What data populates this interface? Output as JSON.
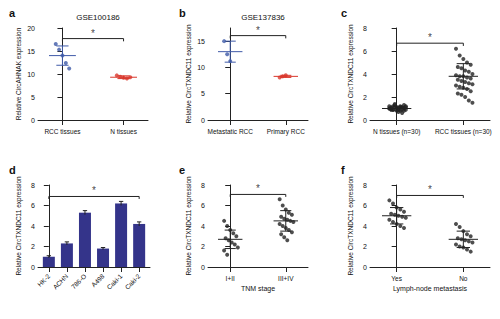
{
  "chart_data": [
    {
      "panel": "a",
      "type": "scatter",
      "title": "GSE100186",
      "ylabel": "Relative CircAHNAK expression",
      "categories": [
        "RCC tissues",
        "N tissues"
      ],
      "values": [
        [
          16.5,
          15.3,
          14.0,
          12.4,
          11.2
        ],
        [
          9.7,
          9.4,
          9.2,
          9.0,
          9.3
        ]
      ],
      "mean": [
        14.0,
        9.3
      ],
      "error": [
        2.1,
        0.3
      ],
      "colors": [
        "#3f5aa8",
        "#d9372c"
      ],
      "ylim": [
        0,
        20
      ],
      "yticks": [
        0,
        5,
        10,
        15,
        20
      ],
      "annotation": "*"
    },
    {
      "panel": "b",
      "type": "scatter",
      "title": "GSE137836",
      "ylabel": "Relative CircTXNDC11 expression",
      "categories": [
        "Metastatic RCC",
        "Primary RCC"
      ],
      "values": [
        [
          15.0,
          12.5,
          11.2
        ],
        [
          8.1,
          8.3,
          8.5
        ]
      ],
      "mean": [
        13.0,
        8.3
      ],
      "error": [
        2.0,
        0.2
      ],
      "colors": [
        "#3f5aa8",
        "#d9372c"
      ],
      "ylim": [
        0,
        17.5
      ],
      "yticks": [
        0,
        5,
        10,
        15
      ],
      "annotation": "*"
    },
    {
      "panel": "c",
      "type": "scatter",
      "ylabel": "Relative CircTXNDC11 expression",
      "categories": [
        "N tissues (n=30)",
        "RCC tissues (n=30)"
      ],
      "values": [
        [
          1.0,
          0.9,
          1.1,
          1.2,
          0.8,
          1.0,
          1.3,
          0.7,
          1.1,
          0.9,
          1.0,
          1.2,
          0.8,
          1.1,
          1.0,
          0.9,
          1.4,
          1.0,
          0.6,
          1.1,
          1.2,
          0.9,
          1.0,
          0.8,
          1.3,
          1.0,
          1.1,
          0.9,
          1.0,
          1.2
        ],
        [
          6.2,
          5.6,
          5.3,
          5.0,
          4.8,
          4.6,
          4.5,
          4.3,
          4.2,
          4.0,
          3.9,
          3.8,
          3.8,
          3.7,
          3.6,
          3.5,
          3.4,
          3.3,
          3.2,
          3.1,
          3.0,
          2.9,
          2.8,
          2.7,
          2.5,
          2.3,
          2.2,
          2.0,
          1.7,
          1.5
        ]
      ],
      "mean": [
        1.0,
        3.8
      ],
      "error": [
        0.2,
        1.1
      ],
      "colors": [
        "#222222",
        "#222222"
      ],
      "ylim": [
        0,
        8
      ],
      "yticks": [
        0,
        2,
        4,
        6,
        8
      ],
      "annotation": "*"
    },
    {
      "panel": "d",
      "type": "bar",
      "ylabel": "Relative CircTXNDC11 expression",
      "categories": [
        "HK-2",
        "ACHN",
        "786-O",
        "A498",
        "Caki-1",
        "Caki-2"
      ],
      "values": [
        1.0,
        2.3,
        5.3,
        1.8,
        6.2,
        4.2
      ],
      "error": [
        0.1,
        0.15,
        0.2,
        0.1,
        0.2,
        0.2
      ],
      "color": "#34348a",
      "ylim": [
        0,
        8
      ],
      "yticks": [
        0,
        2,
        4,
        6,
        8
      ],
      "annotation": "*"
    },
    {
      "panel": "e",
      "type": "scatter",
      "ylabel": "Relative CircTXNDC11 expression",
      "xlabel": "TNM stage",
      "categories": [
        "I+II",
        "III+IV"
      ],
      "values": [
        [
          4.5,
          4.0,
          3.6,
          3.3,
          3.0,
          2.8,
          2.6,
          2.4,
          2.2,
          1.9,
          1.6,
          1.2
        ],
        [
          6.6,
          6.0,
          5.6,
          5.3,
          5.1,
          4.9,
          4.7,
          4.6,
          4.5,
          4.4,
          4.2,
          4.0,
          3.8,
          3.6,
          3.4,
          3.2,
          2.9,
          2.6
        ]
      ],
      "mean": [
        2.7,
        4.5
      ],
      "error": [
        0.9,
        1.0
      ],
      "colors": [
        "#222222",
        "#222222"
      ],
      "ylim": [
        0,
        8
      ],
      "yticks": [
        0,
        2,
        4,
        6,
        8
      ],
      "annotation": "*"
    },
    {
      "panel": "f",
      "type": "scatter",
      "ylabel": "Relative CircTXNDC11 expression",
      "xlabel": "Lymph-node metastasis",
      "categories": [
        "Yes",
        "No"
      ],
      "values": [
        [
          6.5,
          6.2,
          5.8,
          5.6,
          5.4,
          5.2,
          5.1,
          5.0,
          4.9,
          4.8,
          4.6,
          4.4,
          4.2,
          4.0,
          3.8
        ],
        [
          4.2,
          3.9,
          3.5,
          3.2,
          3.0,
          2.8,
          2.7,
          2.6,
          2.5,
          2.4,
          2.2,
          2.0,
          1.9,
          1.7,
          1.5
        ]
      ],
      "mean": [
        5.0,
        2.7
      ],
      "error": [
        0.8,
        0.8
      ],
      "colors": [
        "#222222",
        "#222222"
      ],
      "ylim": [
        0,
        8
      ],
      "yticks": [
        0,
        2,
        4,
        6,
        8
      ],
      "annotation": "*"
    }
  ]
}
